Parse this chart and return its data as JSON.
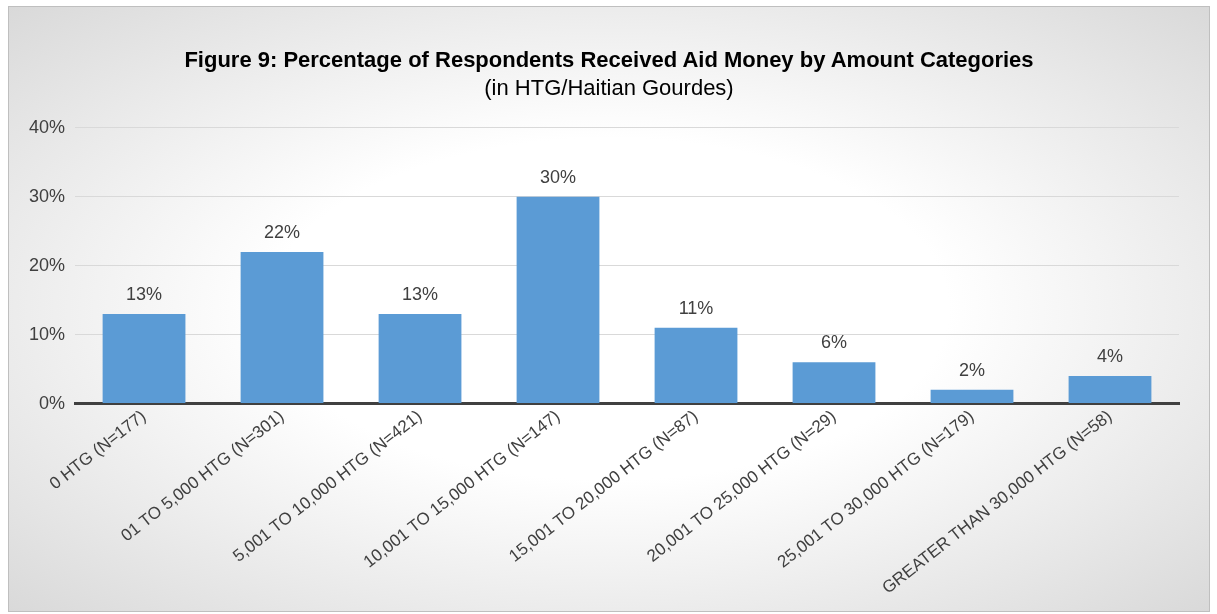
{
  "chart_data": {
    "type": "bar",
    "title": "Figure 9: Percentage of Respondents Received Aid Money by Amount Categories",
    "subtitle": "(in HTG/Haitian Gourdes)",
    "categories": [
      "0 HTG (N=177)",
      "01 TO 5,000 HTG (N=301)",
      "5,001 TO 10,000 HTG (N=421)",
      "10,001 TO 15,000 HTG (N=147)",
      "15,001 TO 20,000 HTG (N=87)",
      "20,001 TO 25,000 HTG (N=29)",
      "25,001 TO 30,000 HTG (N=179)",
      "GREATER THAN 30,000 HTG (N=58)"
    ],
    "values": [
      13,
      22,
      13,
      30,
      11,
      6,
      2,
      4
    ],
    "value_labels": [
      "13%",
      "22%",
      "13%",
      "30%",
      "11%",
      "6%",
      "2%",
      "4%"
    ],
    "color": "#5b9bd5",
    "ylim": [
      0,
      40
    ],
    "yticks": [
      {
        "value": 0,
        "label": "0%"
      },
      {
        "value": 10,
        "label": "10%"
      },
      {
        "value": 20,
        "label": "20%"
      },
      {
        "value": 30,
        "label": "30%"
      },
      {
        "value": 40,
        "label": "40%"
      }
    ],
    "grid": "y",
    "legend": false
  }
}
